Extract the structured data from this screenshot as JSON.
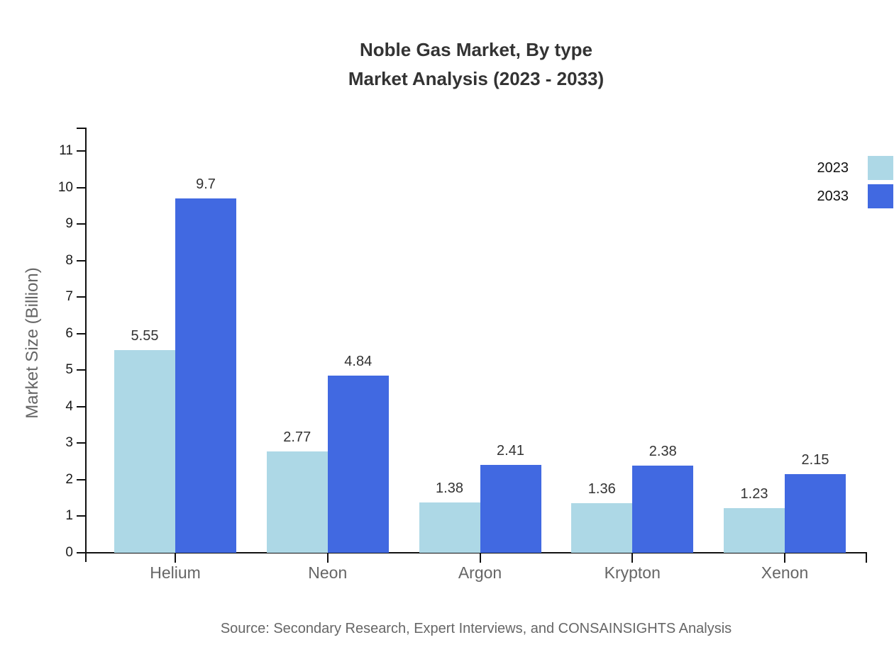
{
  "title": {
    "line1": "Noble Gas Market, By type",
    "line2": "Market Analysis (2023 - 2033)"
  },
  "chart_data": {
    "type": "bar",
    "categories": [
      "Helium",
      "Neon",
      "Argon",
      "Krypton",
      "Xenon"
    ],
    "series": [
      {
        "name": "2023",
        "color": "#add8e6",
        "values": [
          5.55,
          2.77,
          1.38,
          1.36,
          1.23
        ]
      },
      {
        "name": "2033",
        "color": "#4169e1",
        "values": [
          9.7,
          4.84,
          2.41,
          2.38,
          2.15
        ]
      }
    ],
    "xlabel": "",
    "ylabel": "Market Size (Billion)",
    "yticks": [
      0,
      1,
      2,
      3,
      4,
      5,
      6,
      7,
      8,
      9,
      10,
      11
    ],
    "ylim": [
      0,
      11.6
    ],
    "grid": false,
    "value_labels": true,
    "legend_position": "top-right"
  },
  "source": "Source: Secondary Research, Expert Interviews, and CONSAINSIGHTS Analysis",
  "colors": {
    "series_2023": "#add8e6",
    "series_2033": "#4169e1",
    "axis": "#111111",
    "title_text": "#333333",
    "value_text": "#333333",
    "tick_text": "#1a1a1a",
    "category_text": "#666666",
    "source_text": "#666666",
    "background": "#ffffff"
  }
}
